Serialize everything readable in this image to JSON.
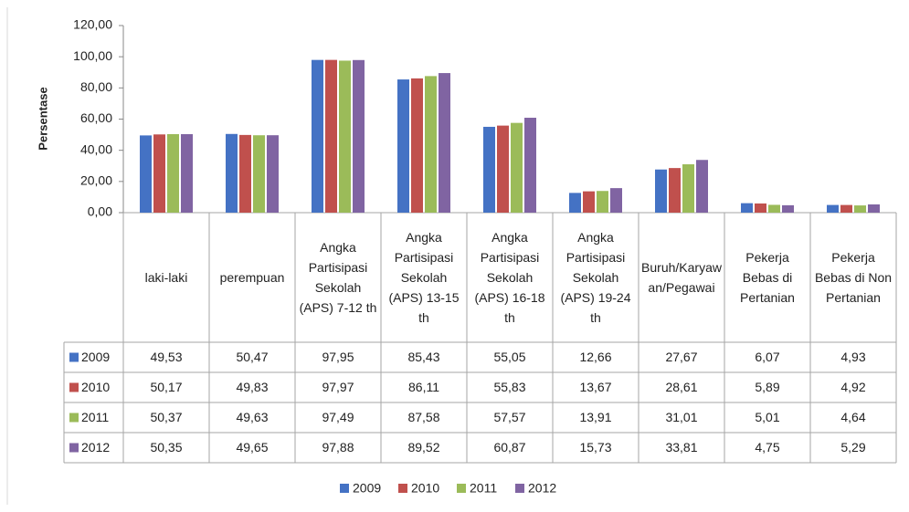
{
  "chart_data": {
    "type": "bar",
    "y_label": "Persentase",
    "categories": [
      "laki-laki",
      "perempuan",
      "Angka Partisipasi Sekolah (APS) 7-12 th",
      "Angka Partisipasi Sekolah (APS) 13-15 th",
      "Angka Partisipasi Sekolah (APS) 16-18 th",
      "Angka Partisipasi Sekolah (APS) 19-24 th",
      "Buruh/Karyawan/Pegawai",
      "Pekerja Bebas di Pertanian",
      "Pekerja Bebas di Non Pertanian"
    ],
    "series": [
      {
        "name": "2009",
        "color": "#4472c4",
        "values": [
          49.53,
          50.47,
          97.95,
          85.43,
          55.05,
          12.66,
          27.67,
          6.07,
          4.93
        ],
        "value_labels": [
          "49,53",
          "50,47",
          "97,95",
          "85,43",
          "55,05",
          "12,66",
          "27,67",
          "6,07",
          "4,93"
        ]
      },
      {
        "name": "2010",
        "color": "#c0504d",
        "values": [
          50.17,
          49.83,
          97.97,
          86.11,
          55.83,
          13.67,
          28.61,
          5.89,
          4.92
        ],
        "value_labels": [
          "50,17",
          "49,83",
          "97,97",
          "86,11",
          "55,83",
          "13,67",
          "28,61",
          "5,89",
          "4,92"
        ]
      },
      {
        "name": "2011",
        "color": "#9bbb59",
        "values": [
          50.37,
          49.63,
          97.49,
          87.58,
          57.57,
          13.91,
          31.01,
          5.01,
          4.64
        ],
        "value_labels": [
          "50,37",
          "49,63",
          "97,49",
          "87,58",
          "57,57",
          "13,91",
          "31,01",
          "5,01",
          "4,64"
        ]
      },
      {
        "name": "2012",
        "color": "#8064a2",
        "values": [
          50.35,
          49.65,
          97.88,
          89.52,
          60.87,
          15.73,
          33.81,
          4.75,
          5.29
        ],
        "value_labels": [
          "50,35",
          "49,65",
          "97,88",
          "89,52",
          "60,87",
          "15,73",
          "33,81",
          "4,75",
          "5,29"
        ]
      }
    ],
    "ylim": [
      0,
      120
    ],
    "yticks": [
      {
        "value": 0,
        "label": "0,00"
      },
      {
        "value": 20,
        "label": "20,00"
      },
      {
        "value": 40,
        "label": "40,00"
      },
      {
        "value": 60,
        "label": "60,00"
      },
      {
        "value": 80,
        "label": "80,00"
      },
      {
        "value": 100,
        "label": "100,00"
      },
      {
        "value": 120,
        "label": "120,00"
      }
    ],
    "legend": "bottom"
  }
}
